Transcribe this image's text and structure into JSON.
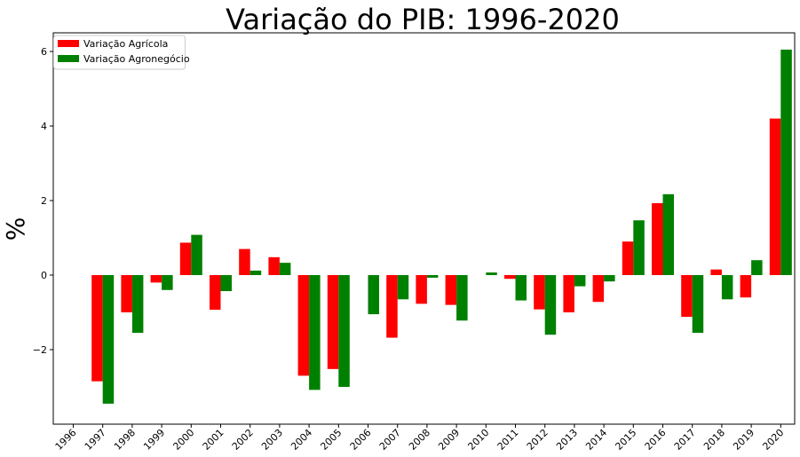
{
  "chart_data": {
    "type": "bar",
    "title": "Variação do PIB: 1996-2020",
    "xlabel": "",
    "ylabel": "%",
    "ylim": [
      -4.0,
      6.5
    ],
    "yticks": [
      -2,
      0,
      2,
      4,
      6
    ],
    "ytick_labels": [
      "−2",
      "0",
      "2",
      "4",
      "6"
    ],
    "grid": false,
    "legend_position": "top-left",
    "categories": [
      "1996",
      "1997",
      "1998",
      "1999",
      "2000",
      "2001",
      "2002",
      "2003",
      "2004",
      "2005",
      "2006",
      "2007",
      "2008",
      "2009",
      "2010",
      "2011",
      "2012",
      "2013",
      "2014",
      "2015",
      "2016",
      "2017",
      "2018",
      "2019",
      "2020"
    ],
    "series": [
      {
        "name": "Variação Agrícola",
        "color": "#ff0000",
        "values": [
          0,
          -2.85,
          -1.0,
          -0.2,
          0.87,
          -0.93,
          0.7,
          0.48,
          -2.7,
          -2.52,
          0,
          -1.68,
          -0.77,
          -0.8,
          0,
          -0.1,
          -0.92,
          -1.0,
          -0.72,
          0.9,
          1.93,
          -1.12,
          0.15,
          -0.6,
          4.2
        ]
      },
      {
        "name": "Variação Agronegócio",
        "color": "#008000",
        "values": [
          0,
          -3.45,
          -1.55,
          -0.4,
          1.08,
          -0.43,
          0.12,
          0.33,
          -3.08,
          -3.0,
          -1.05,
          -0.65,
          -0.07,
          -1.22,
          0.07,
          -0.68,
          -1.6,
          -0.3,
          -0.17,
          1.47,
          2.17,
          -1.55,
          -0.65,
          0.4,
          6.05
        ]
      }
    ]
  }
}
